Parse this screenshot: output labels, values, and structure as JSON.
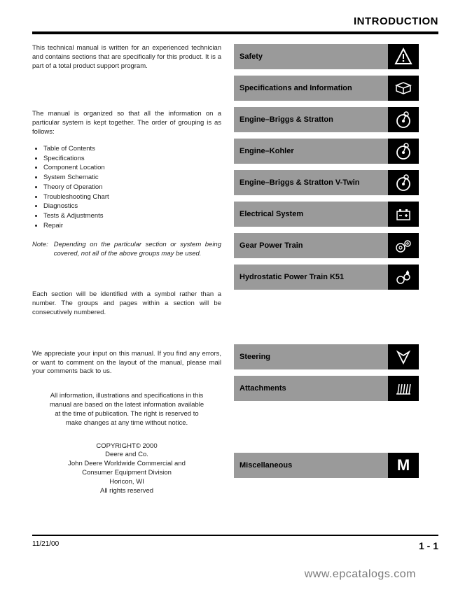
{
  "header": {
    "title": "INTRODUCTION"
  },
  "left": {
    "para1": "This technical manual is written for an experienced technician and contains sections that are specifically for this product. It is a part of a total product support program.",
    "para2": "The manual is organized so that all the information on a particular system is kept together. The order of grouping is as follows:",
    "bullets": [
      "Table of Contents",
      "Specifications",
      "Component Location",
      "System Schematic",
      "Theory of Operation",
      "Troubleshooting Chart",
      "Diagnostics",
      "Tests & Adjustments",
      "Repair"
    ],
    "note_label": "Note:",
    "note_body": "Depending on the particular section or system being covered, not all of the above groups may be used.",
    "para3": "Each section will be identified with a symbol rather than a number. The groups and pages within a section will be consecutively numbered.",
    "para4": "We appreciate your input on this manual. If you find any errors, or want to comment on the layout of the manual, please mail your comments back to us.",
    "center": "All information, illustrations and specifications in this manual are based on the latest information available at the time of publication. The right is reserved to make changes at any time without notice.",
    "copy1": "COPYRIGHT© 2000",
    "copy2": "Deere and Co.",
    "copy3": "John Deere Worldwide Commercial and",
    "copy4": "Consumer Equipment Division",
    "copy5": "Horicon, WI",
    "copy6": "All rights reserved"
  },
  "sections_a": [
    {
      "label": "Safety",
      "icon": "warning"
    },
    {
      "label": "Specifications and Information",
      "icon": "book"
    },
    {
      "label": "Engine–Briggs & Stratton",
      "icon": "gauge"
    },
    {
      "label": "Engine–Kohler",
      "icon": "gauge"
    },
    {
      "label": "Engine–Briggs & Stratton V-Twin",
      "icon": "gauge"
    },
    {
      "label": "Electrical System",
      "icon": "battery"
    },
    {
      "label": "Gear Power Train",
      "icon": "gears"
    },
    {
      "label": "Hydrostatic Power Train K51",
      "icon": "hydro"
    }
  ],
  "sections_b": [
    {
      "label": "Steering",
      "icon": "steer"
    },
    {
      "label": "Attachments",
      "icon": "attach"
    }
  ],
  "sections_c": [
    {
      "label": "Miscellaneous",
      "icon": "M"
    }
  ],
  "footer": {
    "date": "11/21/00",
    "page": "1 - 1"
  },
  "watermark": "www.epcatalogs.com"
}
